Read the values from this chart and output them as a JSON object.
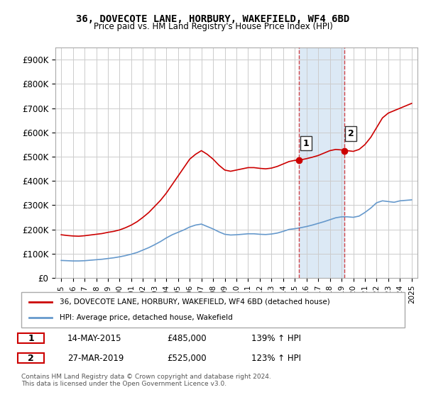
{
  "title": "36, DOVECOTE LANE, HORBURY, WAKEFIELD, WF4 6BD",
  "subtitle": "Price paid vs. HM Land Registry's House Price Index (HPI)",
  "legend_line1": "36, DOVECOTE LANE, HORBURY, WAKEFIELD, WF4 6BD (detached house)",
  "legend_line2": "HPI: Average price, detached house, Wakefield",
  "annotation1_label": "1",
  "annotation1_date": "14-MAY-2015",
  "annotation1_price": "£485,000",
  "annotation1_hpi": "139% ↑ HPI",
  "annotation2_label": "2",
  "annotation2_date": "27-MAR-2019",
  "annotation2_price": "£525,000",
  "annotation2_hpi": "123% ↑ HPI",
  "footer": "Contains HM Land Registry data © Crown copyright and database right 2024.\nThis data is licensed under the Open Government Licence v3.0.",
  "red_line_color": "#cc0000",
  "blue_line_color": "#6699cc",
  "shade_color": "#dce9f5",
  "vline_color": "#cc0000",
  "point1_x": 2015.37,
  "point2_x": 2019.24,
  "point1_y": 485000,
  "point2_y": 525000,
  "ylim": [
    0,
    950000
  ],
  "xlim": [
    1994.5,
    2025.5
  ],
  "yticks": [
    0,
    100000,
    200000,
    300000,
    400000,
    500000,
    600000,
    700000,
    800000,
    900000
  ],
  "ytick_labels": [
    "£0",
    "£100K",
    "£200K",
    "£300K",
    "£400K",
    "£500K",
    "£600K",
    "£700K",
    "£800K",
    "£900K"
  ],
  "xticks": [
    1995,
    1996,
    1997,
    1998,
    1999,
    2000,
    2001,
    2002,
    2003,
    2004,
    2005,
    2006,
    2007,
    2008,
    2009,
    2010,
    2011,
    2012,
    2013,
    2014,
    2015,
    2016,
    2017,
    2018,
    2019,
    2020,
    2021,
    2022,
    2023,
    2024,
    2025
  ],
  "red_x": [
    1995.0,
    1995.5,
    1996.0,
    1996.5,
    1997.0,
    1997.5,
    1998.0,
    1998.5,
    1999.0,
    1999.5,
    2000.0,
    2000.5,
    2001.0,
    2001.5,
    2002.0,
    2002.5,
    2003.0,
    2003.5,
    2004.0,
    2004.5,
    2005.0,
    2005.5,
    2006.0,
    2006.5,
    2007.0,
    2007.5,
    2008.0,
    2008.5,
    2009.0,
    2009.5,
    2010.0,
    2010.5,
    2011.0,
    2011.5,
    2012.0,
    2012.5,
    2013.0,
    2013.5,
    2014.0,
    2014.5,
    2015.0,
    2015.37,
    2015.5,
    2016.0,
    2016.5,
    2017.0,
    2017.5,
    2018.0,
    2018.5,
    2019.0,
    2019.24,
    2019.5,
    2020.0,
    2020.5,
    2021.0,
    2021.5,
    2022.0,
    2022.5,
    2023.0,
    2023.5,
    2024.0,
    2024.5,
    2025.0
  ],
  "red_y": [
    178000,
    175000,
    173000,
    172000,
    174000,
    177000,
    180000,
    183000,
    188000,
    192000,
    198000,
    207000,
    218000,
    232000,
    250000,
    270000,
    295000,
    320000,
    350000,
    385000,
    420000,
    455000,
    490000,
    510000,
    525000,
    510000,
    490000,
    465000,
    445000,
    440000,
    445000,
    450000,
    455000,
    455000,
    452000,
    450000,
    453000,
    460000,
    470000,
    480000,
    485000,
    485000,
    487000,
    492000,
    498000,
    505000,
    515000,
    525000,
    530000,
    528000,
    525000,
    525000,
    522000,
    530000,
    550000,
    580000,
    620000,
    660000,
    680000,
    690000,
    700000,
    710000,
    720000
  ],
  "blue_x": [
    1995.0,
    1995.5,
    1996.0,
    1996.5,
    1997.0,
    1997.5,
    1998.0,
    1998.5,
    1999.0,
    1999.5,
    2000.0,
    2000.5,
    2001.0,
    2001.5,
    2002.0,
    2002.5,
    2003.0,
    2003.5,
    2004.0,
    2004.5,
    2005.0,
    2005.5,
    2006.0,
    2006.5,
    2007.0,
    2007.5,
    2008.0,
    2008.5,
    2009.0,
    2009.5,
    2010.0,
    2010.5,
    2011.0,
    2011.5,
    2012.0,
    2012.5,
    2013.0,
    2013.5,
    2014.0,
    2014.5,
    2015.0,
    2015.5,
    2016.0,
    2016.5,
    2017.0,
    2017.5,
    2018.0,
    2018.5,
    2019.0,
    2019.5,
    2020.0,
    2020.5,
    2021.0,
    2021.5,
    2022.0,
    2022.5,
    2023.0,
    2023.5,
    2024.0,
    2024.5,
    2025.0
  ],
  "blue_y": [
    72000,
    71000,
    70000,
    70000,
    71000,
    73000,
    75000,
    77000,
    80000,
    83000,
    87000,
    92000,
    98000,
    105000,
    115000,
    125000,
    137000,
    150000,
    165000,
    178000,
    188000,
    198000,
    210000,
    218000,
    222000,
    212000,
    202000,
    190000,
    180000,
    177000,
    178000,
    180000,
    182000,
    182000,
    180000,
    179000,
    181000,
    185000,
    192000,
    200000,
    203000,
    207000,
    212000,
    218000,
    225000,
    232000,
    240000,
    248000,
    252000,
    252000,
    250000,
    255000,
    270000,
    288000,
    310000,
    318000,
    315000,
    312000,
    318000,
    320000,
    322000
  ]
}
